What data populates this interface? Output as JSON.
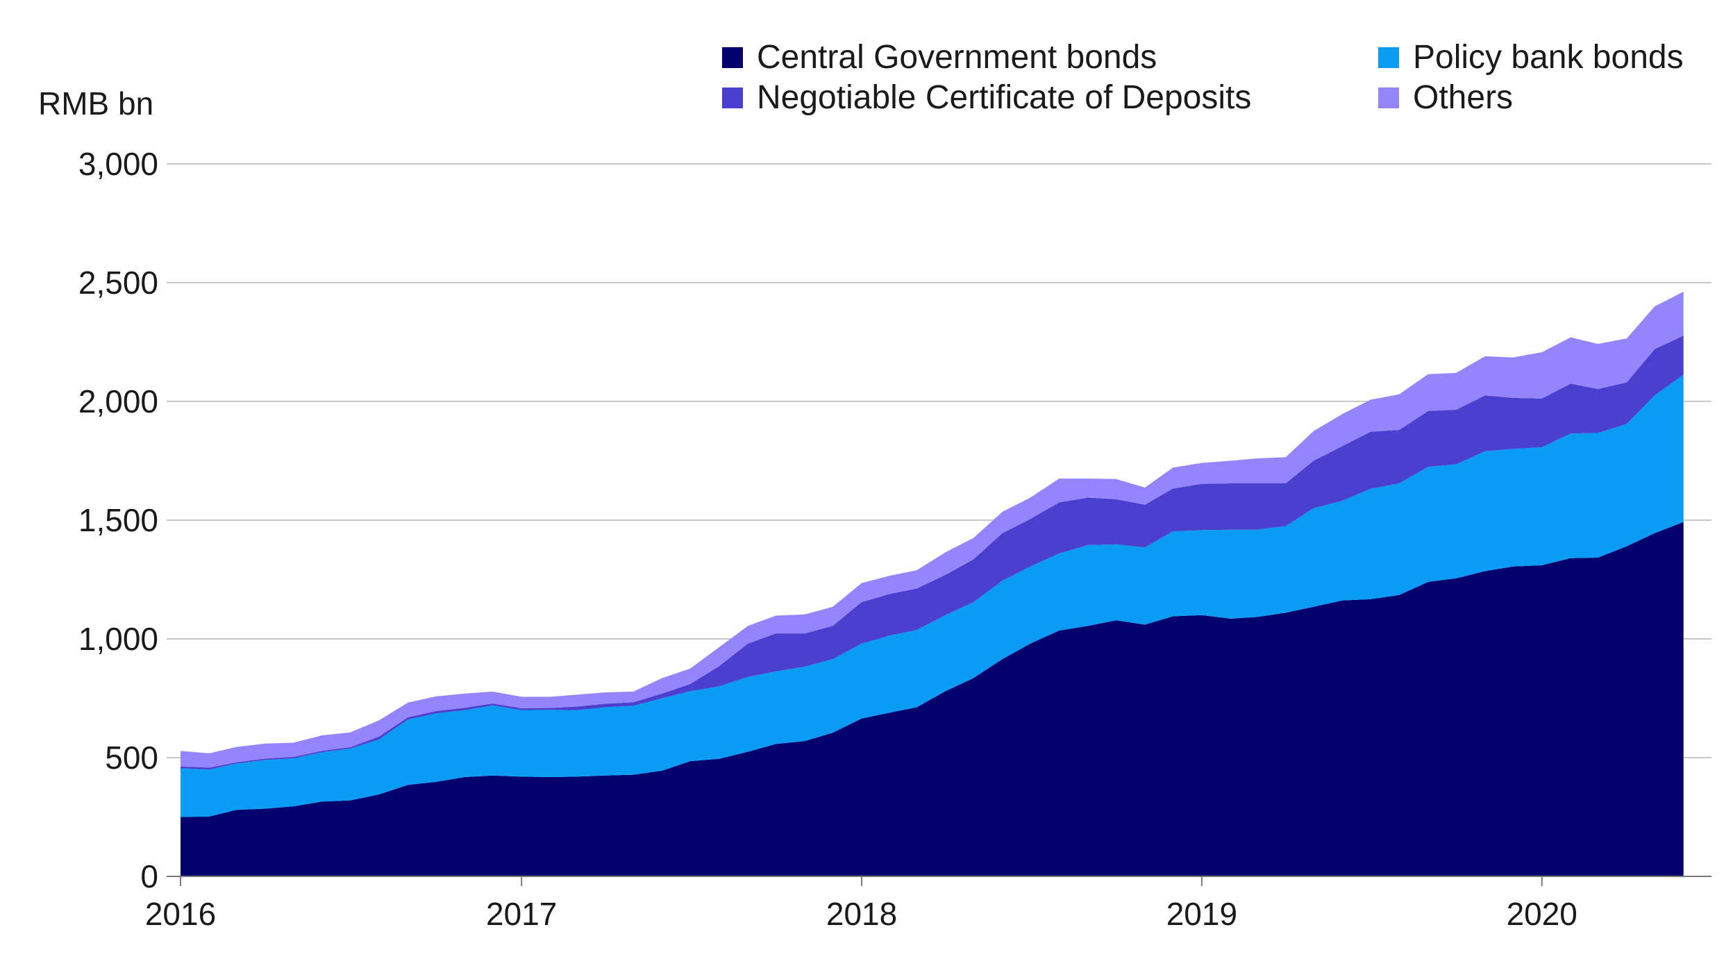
{
  "chart_data": {
    "type": "area",
    "stacked": true,
    "ylabel": "RMB bn",
    "ylim": [
      0,
      3000
    ],
    "yticks": [
      0,
      500,
      1000,
      1500,
      2000,
      2500,
      3000
    ],
    "ytick_labels": [
      "0",
      "500",
      "1,000",
      "1,500",
      "2,000",
      "2,500",
      "3,000"
    ],
    "xlim": [
      "2016-01-01",
      "2020-07-01"
    ],
    "xticks": [
      "2016-01-01",
      "2017-01-01",
      "2018-01-01",
      "2019-01-01",
      "2020-01-01"
    ],
    "xtick_labels": [
      "2016",
      "2017",
      "2018",
      "2019",
      "2020"
    ],
    "grid": "horizontal",
    "legend_position": "top",
    "x": [
      "2016-01",
      "2016-02",
      "2016-03",
      "2016-04",
      "2016-05",
      "2016-06",
      "2016-07",
      "2016-08",
      "2016-09",
      "2016-10",
      "2016-11",
      "2016-12",
      "2017-01",
      "2017-02",
      "2017-03",
      "2017-04",
      "2017-05",
      "2017-06",
      "2017-07",
      "2017-08",
      "2017-09",
      "2017-10",
      "2017-11",
      "2017-12",
      "2018-01",
      "2018-02",
      "2018-03",
      "2018-04",
      "2018-05",
      "2018-06",
      "2018-07",
      "2018-08",
      "2018-09",
      "2018-10",
      "2018-11",
      "2018-12",
      "2019-01",
      "2019-02",
      "2019-03",
      "2019-04",
      "2019-05",
      "2019-06",
      "2019-07",
      "2019-08",
      "2019-09",
      "2019-10",
      "2019-11",
      "2019-12",
      "2020-01",
      "2020-02",
      "2020-03",
      "2020-04",
      "2020-05",
      "2020-06"
    ],
    "series": [
      {
        "name": "Central Government bonds",
        "color": "#03006e",
        "values": [
          250,
          252,
          280,
          285,
          295,
          315,
          320,
          345,
          385,
          398,
          418,
          425,
          420,
          418,
          420,
          425,
          428,
          445,
          485,
          495,
          525,
          558,
          570,
          605,
          665,
          690,
          712,
          780,
          835,
          915,
          980,
          1035,
          1055,
          1078,
          1060,
          1095,
          1100,
          1085,
          1092,
          1110,
          1135,
          1162,
          1167,
          1185,
          1240,
          1255,
          1285,
          1305,
          1310,
          1340,
          1342,
          1390,
          1445,
          1492
        ]
      },
      {
        "name": "Policy bank bonds",
        "color": "#0a9bf5",
        "values": [
          205,
          198,
          195,
          205,
          202,
          208,
          218,
          232,
          275,
          288,
          282,
          295,
          280,
          283,
          280,
          287,
          290,
          305,
          295,
          305,
          315,
          305,
          313,
          310,
          315,
          325,
          325,
          320,
          320,
          330,
          325,
          325,
          340,
          320,
          325,
          358,
          358,
          375,
          368,
          365,
          415,
          420,
          465,
          470,
          485,
          480,
          505,
          495,
          497,
          525,
          525,
          515,
          580,
          620
        ]
      },
      {
        "name": "Negotiable Certificate of Deposits",
        "color": "#4b3fcf",
        "values": [
          8,
          8,
          5,
          6,
          6,
          6,
          6,
          12,
          10,
          10,
          10,
          8,
          8,
          8,
          15,
          15,
          15,
          20,
          30,
          85,
          140,
          160,
          140,
          140,
          175,
          175,
          175,
          170,
          180,
          200,
          200,
          215,
          200,
          190,
          180,
          180,
          195,
          195,
          195,
          180,
          200,
          230,
          240,
          225,
          235,
          230,
          235,
          215,
          205,
          210,
          185,
          175,
          195,
          165
        ]
      },
      {
        "name": "Others",
        "color": "#9585fc",
        "values": [
          65,
          60,
          65,
          63,
          60,
          65,
          62,
          68,
          62,
          62,
          60,
          50,
          48,
          47,
          50,
          48,
          45,
          65,
          65,
          80,
          75,
          75,
          80,
          80,
          80,
          77,
          77,
          95,
          90,
          90,
          90,
          100,
          80,
          85,
          72,
          88,
          88,
          95,
          105,
          110,
          125,
          135,
          135,
          150,
          155,
          155,
          165,
          170,
          195,
          195,
          190,
          185,
          180,
          185
        ]
      }
    ]
  }
}
